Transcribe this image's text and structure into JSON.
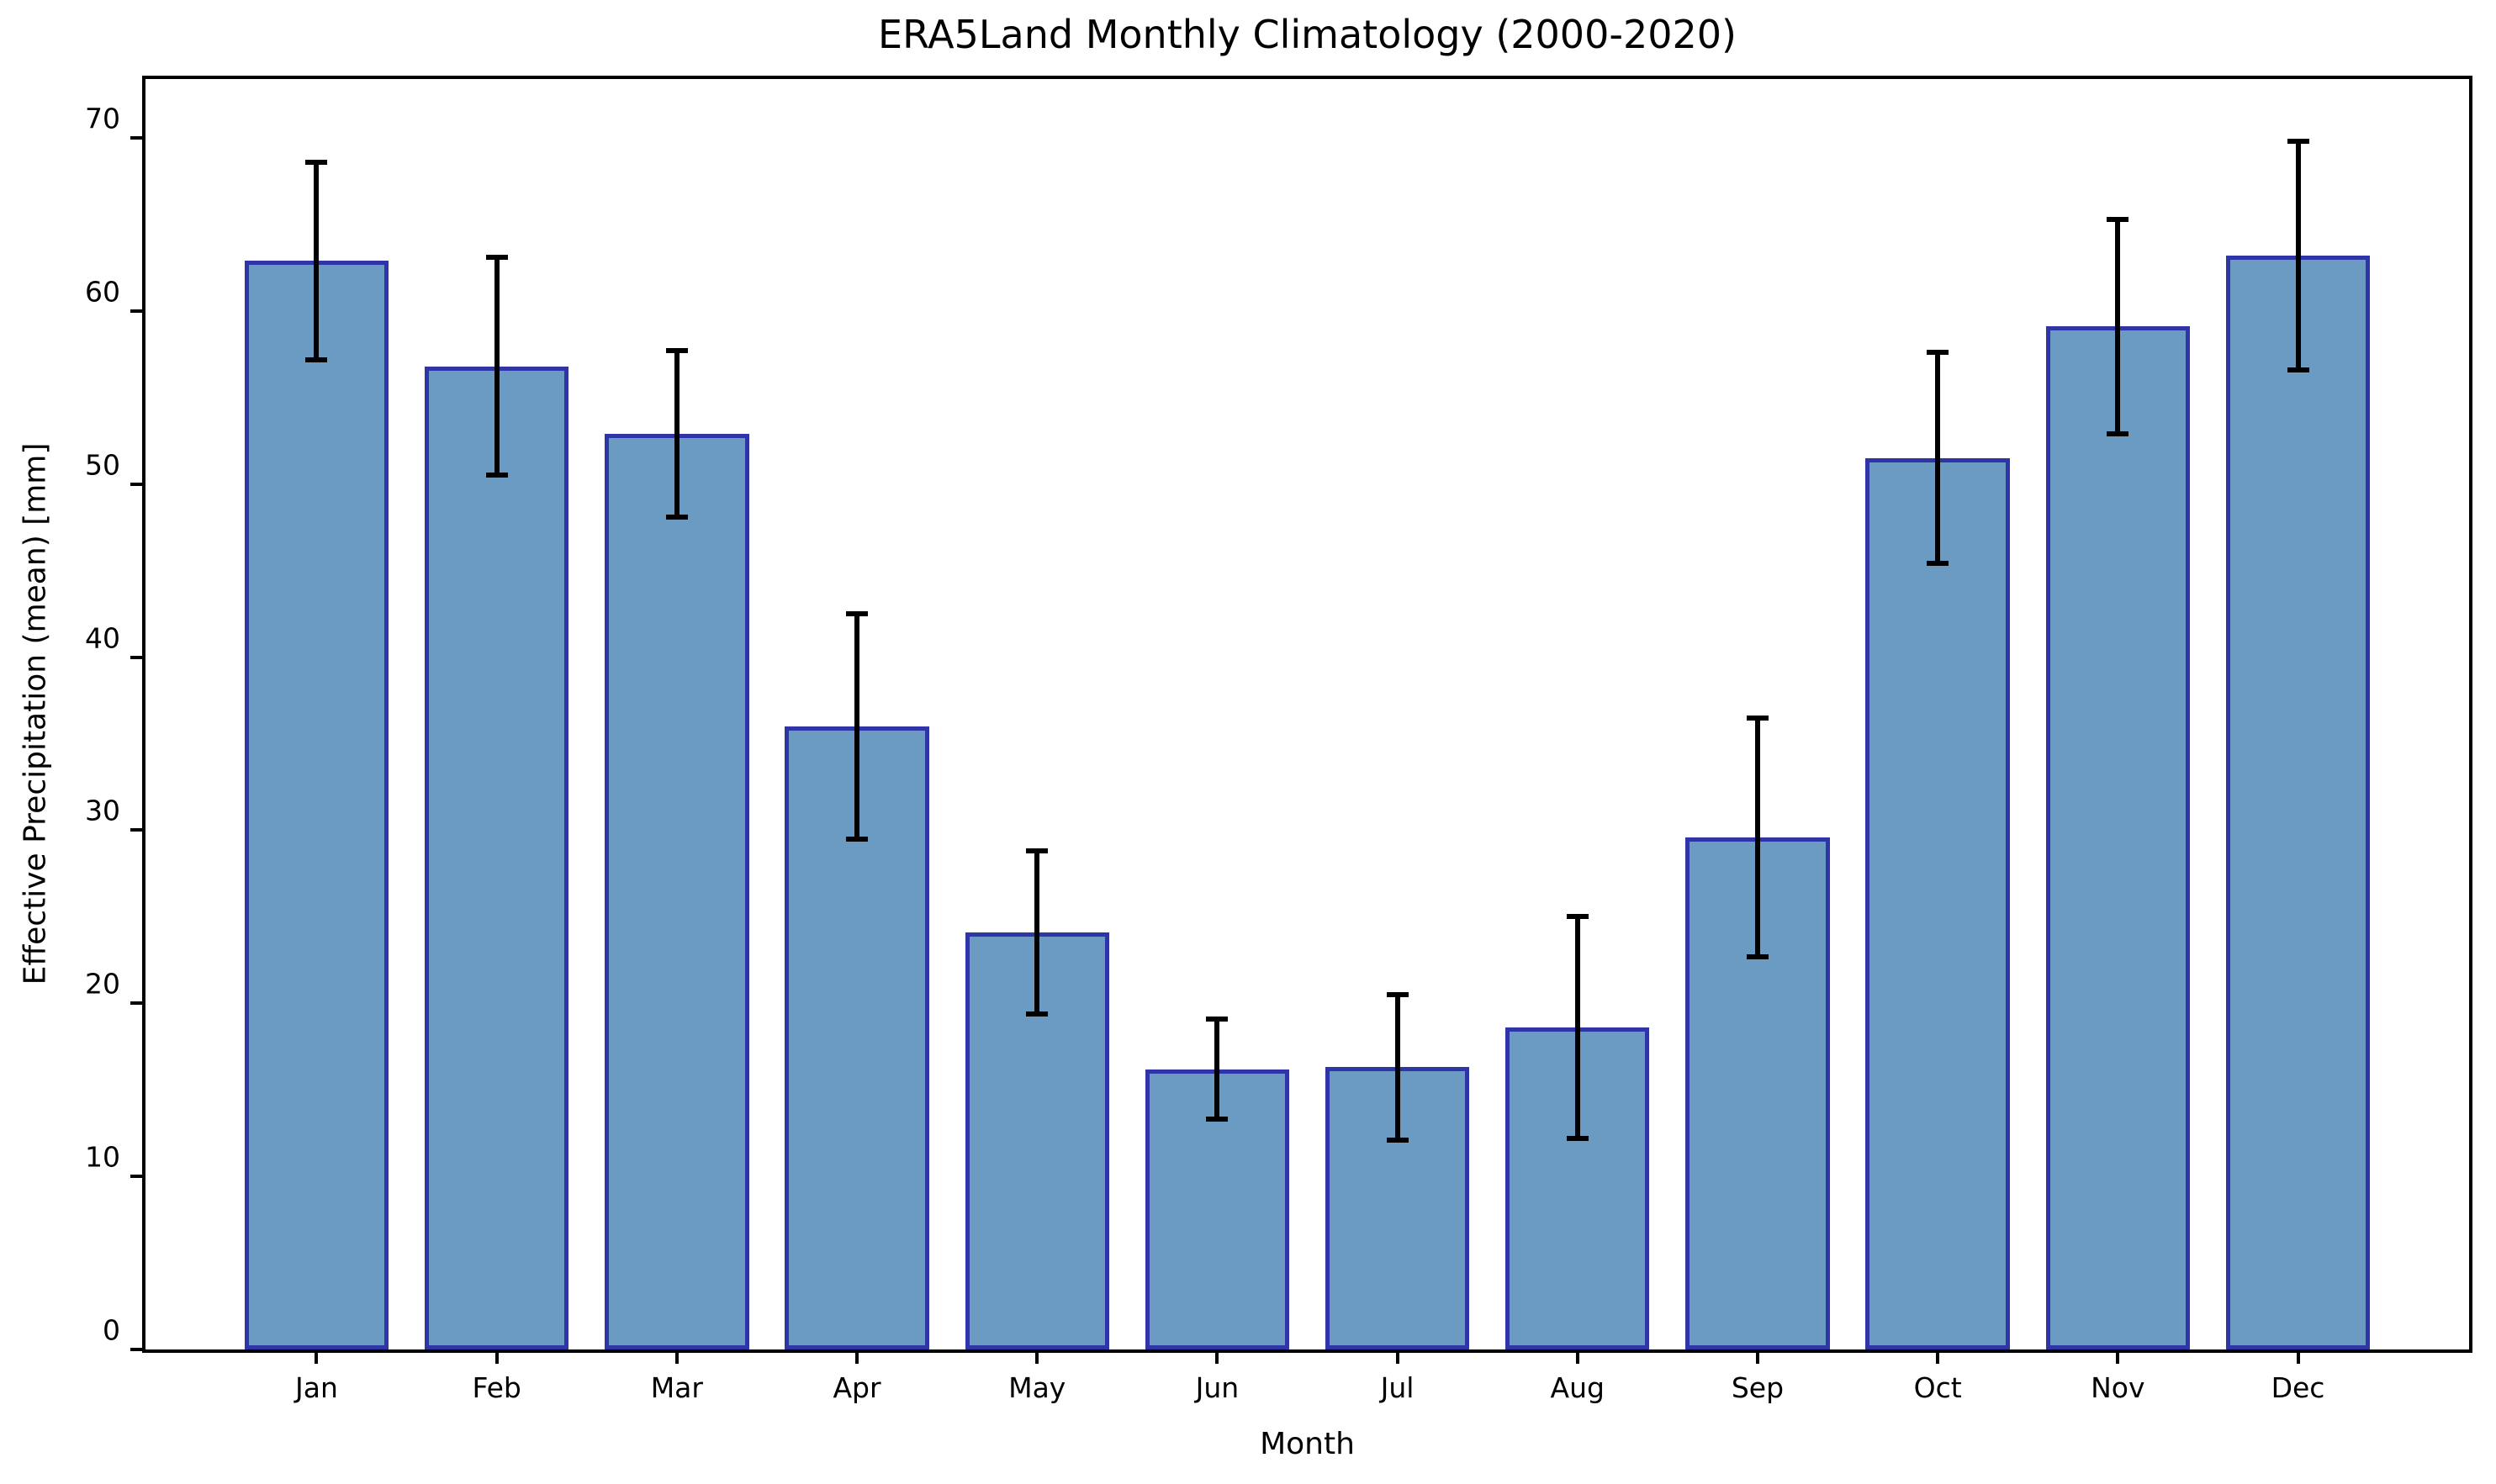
{
  "chart_data": {
    "type": "bar",
    "title": "ERA5Land Monthly Climatology (2000-2020)",
    "xlabel": "Month",
    "ylabel": "Effective Precipitation (mean) [mm]",
    "categories": [
      "Jan",
      "Feb",
      "Mar",
      "Apr",
      "May",
      "Jun",
      "Jul",
      "Aug",
      "Sep",
      "Oct",
      "Nov",
      "Dec"
    ],
    "values": [
      62.9,
      56.8,
      52.9,
      36.0,
      24.1,
      16.2,
      16.3,
      18.6,
      29.6,
      51.5,
      59.1,
      63.2
    ],
    "error_bars": [
      5.7,
      6.3,
      4.8,
      6.5,
      4.7,
      2.9,
      4.2,
      6.4,
      6.9,
      6.1,
      6.2,
      6.6
    ],
    "yticks": [
      0,
      10,
      20,
      30,
      40,
      50,
      60,
      70
    ],
    "ylim": [
      0,
      73.4
    ],
    "grid": "off",
    "legend": "none",
    "colors": {
      "bar_fill": "#6b9bc3",
      "bar_edge": "#2f35a6",
      "error_bar": "#000000",
      "text": "#000000",
      "background": "#ffffff"
    }
  }
}
